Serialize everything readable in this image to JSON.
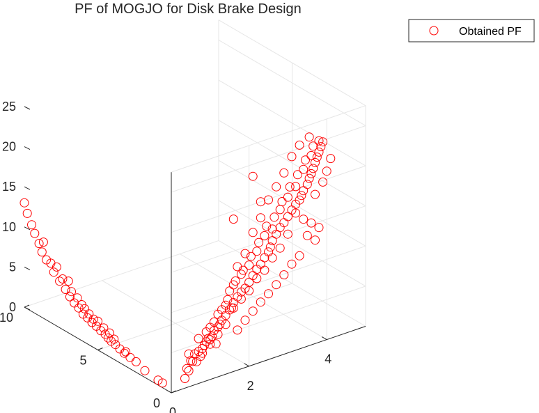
{
  "chart_data": {
    "type": "scatter3d",
    "title": "PF of MOGJO for Disk Brake Design",
    "xlabel": "",
    "ylabel": "",
    "zlabel": "",
    "xlim": [
      0,
      10
    ],
    "ylim": [
      0,
      5
    ],
    "zlim": [
      0,
      25
    ],
    "x_ticks": [
      "0",
      "5",
      "10"
    ],
    "y_ticks": [
      "0",
      "2",
      "4"
    ],
    "z_ticks": [
      "0",
      "5",
      "10",
      "15",
      "20",
      "25"
    ],
    "grid": true,
    "legend_position": "top-right",
    "series": [
      {
        "name": "Obtained PF",
        "color": "#ff0000",
        "marker": "open-circle",
        "points": [
          [
            0.6,
            0.0,
            0.58
          ],
          [
            0.9,
            0.0,
            0.62
          ],
          [
            1.8,
            0.0,
            0.84
          ],
          [
            2.4,
            0.0,
            1.31
          ],
          [
            2.8,
            0.0,
            1.41
          ],
          [
            3.2,
            0.0,
            1.51
          ],
          [
            3.5,
            0.0,
            1.73
          ],
          [
            3.8,
            0.0,
            1.96
          ],
          [
            4.1,
            0.0,
            2.06
          ],
          [
            4.5,
            0.0,
            2.5
          ],
          [
            4.8,
            0.0,
            2.62
          ],
          [
            5.1,
            0.0,
            2.85
          ],
          [
            5.4,
            0.0,
            3.0
          ],
          [
            5.7,
            0.0,
            3.25
          ],
          [
            6.0,
            0.0,
            3.4
          ],
          [
            6.3,
            0.0,
            3.85
          ],
          [
            6.6,
            0.0,
            4.15
          ],
          [
            6.9,
            0.0,
            4.6
          ],
          [
            7.2,
            0.0,
            5.2
          ],
          [
            7.6,
            0.0,
            5.8
          ],
          [
            8.0,
            0.0,
            6.5
          ],
          [
            8.5,
            0.0,
            7.5
          ],
          [
            9.0,
            0.0,
            9.0
          ],
          [
            9.5,
            0.0,
            10.8
          ],
          [
            10.0,
            0.0,
            13.0
          ],
          [
            3.1,
            0.0,
            1.8
          ],
          [
            3.9,
            0.0,
            2.52
          ],
          [
            4.6,
            0.0,
            3.17
          ],
          [
            5.3,
            0.0,
            3.52
          ],
          [
            6.1,
            0.0,
            4.47
          ],
          [
            6.8,
            0.0,
            5.35
          ],
          [
            7.4,
            0.0,
            6.29
          ],
          [
            8.2,
            0.0,
            7.4
          ],
          [
            8.8,
            0.0,
            8.15
          ],
          [
            9.3,
            0.0,
            9.94
          ],
          [
            4.2,
            0.0,
            2.97
          ],
          [
            5.0,
            0.0,
            3.58
          ],
          [
            5.9,
            0.0,
            4.18
          ],
          [
            7.0,
            0.0,
            6.45
          ],
          [
            8.7,
            0.0,
            9.5
          ],
          [
            9.8,
            0.0,
            11.9
          ],
          [
            4.3,
            0.0,
            2.25
          ],
          [
            5.6,
            0.0,
            3.85
          ],
          [
            6.4,
            0.0,
            5.0
          ],
          [
            7.8,
            0.0,
            7.35
          ],
          [
            0.0,
            0.4,
            2.35
          ],
          [
            0.0,
            0.5,
            3.18
          ],
          [
            0.0,
            0.6,
            3.84
          ],
          [
            0.0,
            0.7,
            4.0
          ],
          [
            0.0,
            0.8,
            4.19
          ],
          [
            0.0,
            0.9,
            4.86
          ],
          [
            0.0,
            1.0,
            4.96
          ],
          [
            0.0,
            1.05,
            5.31
          ],
          [
            0.0,
            1.1,
            5.94
          ],
          [
            0.0,
            1.2,
            6.21
          ],
          [
            0.0,
            1.25,
            6.48
          ],
          [
            0.0,
            1.3,
            6.89
          ],
          [
            0.0,
            1.4,
            7.33
          ],
          [
            0.0,
            1.5,
            7.84
          ],
          [
            0.0,
            1.55,
            8.02
          ],
          [
            0.0,
            1.6,
            8.59
          ],
          [
            0.0,
            1.7,
            9.14
          ],
          [
            0.0,
            1.8,
            9.58
          ],
          [
            0.0,
            1.9,
            9.88
          ],
          [
            0.0,
            2.0,
            10.45
          ],
          [
            0.0,
            2.1,
            11.14
          ],
          [
            0.0,
            2.2,
            11.75
          ],
          [
            0.0,
            2.3,
            12.21
          ],
          [
            0.0,
            2.4,
            12.86
          ],
          [
            0.0,
            2.5,
            13.41
          ],
          [
            0.0,
            2.55,
            13.94
          ],
          [
            0.0,
            2.6,
            14.65
          ],
          [
            0.0,
            2.7,
            15.3
          ],
          [
            0.0,
            2.8,
            15.96
          ],
          [
            0.0,
            2.9,
            16.4
          ],
          [
            0.0,
            3.0,
            16.99
          ],
          [
            0.0,
            3.1,
            17.64
          ],
          [
            0.0,
            3.2,
            18.2
          ],
          [
            0.0,
            3.3,
            18.56
          ],
          [
            0.0,
            3.35,
            19.04
          ],
          [
            0.0,
            3.4,
            19.55
          ],
          [
            0.0,
            3.5,
            20.18
          ],
          [
            0.0,
            3.55,
            20.84
          ],
          [
            0.0,
            3.6,
            21.34
          ],
          [
            0.0,
            3.65,
            21.91
          ],
          [
            0.0,
            3.7,
            22.56
          ],
          [
            0.0,
            3.75,
            23.16
          ],
          [
            0.0,
            3.8,
            23.7
          ],
          [
            0.0,
            3.85,
            24.29
          ],
          [
            0.0,
            3.9,
            24.81
          ],
          [
            0.0,
            1.0,
            6.5
          ],
          [
            0.0,
            1.2,
            7.8
          ],
          [
            0.0,
            1.4,
            8.6
          ],
          [
            0.0,
            1.6,
            10.8
          ],
          [
            0.0,
            1.8,
            11.8
          ],
          [
            0.0,
            2.0,
            12.6
          ],
          [
            0.0,
            2.2,
            14.0
          ],
          [
            0.0,
            2.4,
            15.6
          ],
          [
            0.0,
            2.6,
            16.1
          ],
          [
            0.0,
            2.8,
            18.2
          ],
          [
            0.0,
            3.0,
            19.4
          ],
          [
            0.0,
            3.2,
            20.4
          ],
          [
            0.0,
            3.4,
            22.2
          ],
          [
            0.0,
            3.6,
            23.6
          ],
          [
            0.0,
            3.8,
            25.1
          ],
          [
            0.0,
            2.1,
            16.5
          ],
          [
            0.0,
            2.3,
            18.0
          ],
          [
            0.0,
            2.5,
            19.9
          ],
          [
            0.0,
            2.7,
            21.2
          ],
          [
            0.0,
            2.9,
            22.6
          ],
          [
            0.0,
            3.1,
            24.3
          ],
          [
            0.0,
            3.3,
            25.4
          ],
          [
            0.0,
            1.5,
            10.2
          ],
          [
            0.0,
            1.7,
            12.9
          ],
          [
            0.0,
            1.9,
            14.2
          ],
          [
            0.0,
            2.3,
            20.0
          ],
          [
            0.0,
            2.1,
            23.5
          ],
          [
            0.0,
            1.6,
            19.0
          ],
          [
            0.0,
            0.35,
            1.2
          ],
          [
            0.0,
            0.45,
            2.0
          ],
          [
            0.0,
            0.65,
            2.8
          ],
          [
            0.0,
            0.75,
            3.3
          ],
          [
            0.0,
            0.85,
            4.5
          ],
          [
            0.0,
            0.95,
            5.2
          ],
          [
            0.0,
            1.1,
            7.0
          ],
          [
            0.0,
            1.3,
            8.2
          ],
          [
            0.0,
            1.45,
            9.2
          ],
          [
            0.0,
            1.65,
            11.2
          ],
          [
            0.0,
            1.85,
            12.2
          ],
          [
            0.0,
            2.05,
            13.6
          ],
          [
            0.0,
            2.25,
            15.0
          ],
          [
            0.0,
            2.45,
            16.7
          ],
          [
            0.0,
            2.65,
            17.5
          ],
          [
            0.0,
            2.85,
            19.1
          ],
          [
            0.0,
            3.05,
            20.6
          ],
          [
            0.0,
            3.25,
            21.8
          ],
          [
            0.0,
            3.45,
            23.3
          ],
          [
            0.0,
            3.65,
            24.7
          ],
          [
            0.0,
            3.55,
            26.0
          ],
          [
            0.0,
            3.2,
            17.1
          ],
          [
            0.0,
            3.4,
            16.0
          ],
          [
            0.0,
            3.6,
            15.2
          ],
          [
            0.0,
            3.8,
            14.3
          ],
          [
            0.0,
            3.0,
            14.8
          ],
          [
            0.0,
            2.8,
            13.4
          ],
          [
            0.0,
            2.6,
            12.5
          ],
          [
            0.0,
            2.4,
            11.3
          ],
          [
            0.0,
            2.2,
            10.6
          ],
          [
            0.0,
            2.0,
            9.4
          ],
          [
            0.0,
            1.8,
            8.7
          ],
          [
            0.0,
            1.6,
            7.9
          ],
          [
            0.0,
            1.4,
            6.2
          ],
          [
            0.0,
            1.2,
            5.3
          ],
          [
            0.0,
            1.0,
            4.4
          ],
          [
            0.0,
            0.8,
            3.6
          ],
          [
            0.0,
            3.7,
            18.6
          ],
          [
            0.0,
            3.9,
            19.8
          ],
          [
            0.0,
            4.0,
            21.0
          ],
          [
            0.0,
            4.1,
            22.4
          ],
          [
            0.0,
            3.5,
            13.8
          ],
          [
            0.0,
            3.7,
            12.9
          ],
          [
            0.0,
            3.3,
            11.6
          ],
          [
            0.0,
            3.1,
            10.9
          ],
          [
            0.0,
            2.9,
            9.9
          ],
          [
            0.0,
            2.7,
            9.0
          ],
          [
            0.0,
            2.5,
            8.2
          ],
          [
            0.0,
            2.3,
            7.5
          ],
          [
            0.0,
            2.1,
            6.7
          ],
          [
            0.0,
            1.9,
            5.9
          ],
          [
            0.0,
            1.7,
            5.0
          ],
          [
            0.0,
            0.55,
            3.0
          ],
          [
            0.0,
            0.9,
            6.1
          ],
          [
            0.0,
            1.15,
            4.2
          ],
          [
            0.0,
            0.7,
            5.6
          ],
          [
            0.0,
            0.45,
            4.1
          ]
        ]
      }
    ]
  }
}
